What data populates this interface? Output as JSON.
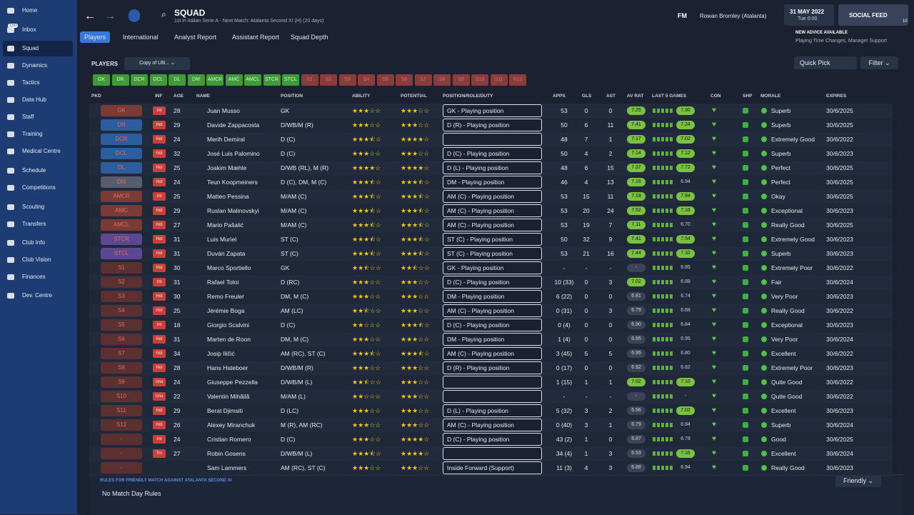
{
  "sidebar": {
    "inbox_badge": "150",
    "items": [
      "Home",
      "Inbox",
      "Squad",
      "Dynamics",
      "Tactics",
      "Data Hub",
      "Staff",
      "Training",
      "Medical Centre",
      "Schedule",
      "Competitions",
      "Scouting",
      "Transfers",
      "Club Info",
      "Club Vision",
      "Finances",
      "Dev. Centre"
    ]
  },
  "header": {
    "title": "SQUAD",
    "subtitle": "1st in Italian Serie A - Next Match: Atalanta Second XI (H) (20 days)",
    "logo": "FM",
    "manager": "Rowan Bromley (Atalanta)",
    "date": "31 MAY 2022",
    "time": "Tue 0:00",
    "social": "SOCIAL FEED",
    "social_badge": "10",
    "advice_title": "NEW ADVICE AVAILABLE",
    "advice_text": "Playing Time Changes, Manager Support"
  },
  "tabs": [
    "Players",
    "International",
    "Analyst Report",
    "Assistant Report",
    "Squad Depth"
  ],
  "toolbar": {
    "section": "PLAYERS",
    "view": "Copy of Ulti...",
    "quick_pick": "Quick Pick",
    "filter": "Filter"
  },
  "chips": [
    "GK",
    "DR",
    "DCR",
    "DCL",
    "DL",
    "DM",
    "AMCR",
    "AMC",
    "AMCL",
    "STCR",
    "STCL",
    "S1",
    "S2",
    "S3",
    "S4",
    "S5",
    "S6",
    "S7",
    "S8",
    "S9",
    "S10",
    "S11",
    "S12"
  ],
  "table": {
    "columns": [
      "PKD",
      "INF",
      "AGE",
      "NAME",
      "POSITION",
      "ABILITY",
      "POTENTIAL",
      "POSITION/ROLE/DUTY",
      "APPS",
      "GLS",
      "AST",
      "AV RAT",
      "LAST 5 GAMES",
      "CON",
      "SHP",
      "MORALE",
      "EXPIRES"
    ],
    "rows": [
      {
        "pkd": "GK",
        "inf": "Int",
        "age": 28,
        "name": "Juan Musso",
        "pos": "GK",
        "ability": 3,
        "potential": 3,
        "role": "GK - Playing position",
        "apps": "53",
        "gls": "0",
        "ast": "0",
        "avr": "7.25",
        "last5": "7.30",
        "morale": "Superb",
        "expires": "30/6/2025"
      },
      {
        "pkd": "DR",
        "inf": "Hol",
        "age": 29,
        "name": "Davide Zappacosta",
        "pos": "D/WB/M (R)",
        "ability": 3,
        "potential": 3,
        "role": "D (R) - Playing position",
        "apps": "50",
        "gls": "6",
        "ast": "11",
        "avr": "7.41",
        "last5": "7.24",
        "morale": "Superb",
        "expires": "30/6/2025"
      },
      {
        "pkd": "DCR",
        "inf": "Hol",
        "age": 24,
        "name": "Merih Demiral",
        "pos": "D (C)",
        "ability": 3.5,
        "potential": 4,
        "apps": "48",
        "gls": "7",
        "ast": "1",
        "avr": "7.17",
        "last5": "7.02",
        "morale": "Extremely Good",
        "expires": "30/6/2022"
      },
      {
        "pkd": "DCL",
        "inf": "Hol",
        "age": 32,
        "name": "José Luis Palomino",
        "pos": "D (C)",
        "ability": 3,
        "potential": 3,
        "role": "D (C) - Playing position",
        "apps": "50",
        "gls": "4",
        "ast": "2",
        "avr": "7.14",
        "last5": "7.12",
        "morale": "Superb",
        "expires": "30/6/2023"
      },
      {
        "pkd": "DL",
        "inf": "Hol",
        "age": 25,
        "name": "Joakim Mæhle",
        "pos": "D/WB (RL), M (R)",
        "ability": 4,
        "potential": 4,
        "role": "D (L) - Playing position",
        "apps": "48",
        "gls": "6",
        "ast": "15",
        "avr": "7.37",
        "last5": "7.72",
        "morale": "Perfect",
        "expires": "30/6/2025"
      },
      {
        "pkd": "DM",
        "inf": "Hol",
        "age": 24,
        "name": "Teun Koopmeiners",
        "pos": "D (C), DM, M (C)",
        "ability": 3.5,
        "potential": 3.5,
        "role": "DM - Playing position",
        "apps": "46",
        "gls": "4",
        "ast": "13",
        "avr": "7.16",
        "last5": "6.94",
        "morale": "Perfect",
        "expires": "30/6/2025"
      },
      {
        "pkd": "AMCR",
        "inf": "Int",
        "age": 25,
        "name": "Matteo Pessina",
        "pos": "M/AM (C)",
        "ability": 3.5,
        "potential": 3.5,
        "role": "AM (C) - Playing position",
        "apps": "53",
        "gls": "15",
        "ast": "11",
        "avr": "7.19",
        "last5": "7.84",
        "morale": "Okay",
        "expires": "30/6/2025"
      },
      {
        "pkd": "AMC",
        "inf": "Hol",
        "age": 29,
        "name": "Ruslan Malinovskyi",
        "pos": "M/AM (C)",
        "ability": 3.5,
        "potential": 3.5,
        "role": "AM (C) - Playing position",
        "apps": "53",
        "gls": "20",
        "ast": "24",
        "avr": "7.52",
        "last5": "7.16",
        "morale": "Exceptional",
        "expires": "30/6/2023"
      },
      {
        "pkd": "AMCL",
        "inf": "Hol",
        "age": 27,
        "name": "Mario Pašalić",
        "pos": "M/AM (C)",
        "ability": 3.5,
        "potential": 3.5,
        "role": "AM (C) - Playing position",
        "apps": "53",
        "gls": "19",
        "ast": "7",
        "avr": "7.11",
        "last5": "6.70",
        "morale": "Really Good",
        "expires": "30/6/2025"
      },
      {
        "pkd": "STCR",
        "inf": "Hol",
        "age": 31,
        "name": "Luis Muriel",
        "pos": "ST (C)",
        "ability": 3.5,
        "potential": 3.5,
        "role": "ST (C) - Playing position",
        "apps": "50",
        "gls": "32",
        "ast": "9",
        "avr": "7.41",
        "last5": "7.54",
        "morale": "Extremely Good",
        "expires": "30/6/2023"
      },
      {
        "pkd": "STCL",
        "inf": "Hol",
        "age": 31,
        "name": "Duván Zapata",
        "pos": "ST (C)",
        "ability": 3.5,
        "potential": 3.5,
        "role": "ST (C) - Playing position",
        "apps": "53",
        "gls": "21",
        "ast": "16",
        "avr": "7.44",
        "last5": "7.32",
        "morale": "Superb",
        "expires": "30/6/2023"
      },
      {
        "pkd": "S1",
        "inf": "Hol",
        "age": 30,
        "name": "Marco Sportiello",
        "pos": "GK",
        "ability": 2.5,
        "potential": 2.5,
        "role": "GK - Playing position",
        "apps": "-",
        "gls": "-",
        "ast": "-",
        "avr": "-",
        "last5": "6.85",
        "morale": "Extremely Poor",
        "expires": "30/6/2022"
      },
      {
        "pkd": "S2",
        "inf": "Int",
        "age": 31,
        "name": "Rafael Toloi",
        "pos": "D (RC)",
        "ability": 3,
        "potential": 3,
        "role": "D (C) - Playing position",
        "apps": "10 (33)",
        "gls": "0",
        "ast": "3",
        "avr": "7.02",
        "last5": "6.88",
        "morale": "Fair",
        "expires": "30/6/2024"
      },
      {
        "pkd": "S3",
        "inf": "Hol",
        "age": 30,
        "name": "Remo Freuler",
        "pos": "DM, M (C)",
        "ability": 3,
        "potential": 3,
        "role": "DM - Playing position",
        "apps": "6 (22)",
        "gls": "0",
        "ast": "0",
        "avr": "6.81",
        "last5": "6.74",
        "morale": "Very Poor",
        "expires": "30/6/2023"
      },
      {
        "pkd": "S4",
        "inf": "Hol",
        "age": 25,
        "name": "Jérémie Boga",
        "pos": "AM (LC)",
        "ability": 2.5,
        "potential": 3,
        "role": "AM (C) - Playing position",
        "apps": "0 (31)",
        "gls": "0",
        "ast": "3",
        "avr": "6.79",
        "last5": "6.68",
        "morale": "Really Good",
        "expires": "30/6/2022"
      },
      {
        "pkd": "S5",
        "inf": "Int",
        "age": 18,
        "name": "Giorgio Scalvini",
        "pos": "D (C)",
        "ability": 2,
        "potential": 3.5,
        "role": "D (C) - Playing position",
        "apps": "0 (4)",
        "gls": "0",
        "ast": "0",
        "avr": "6.90",
        "last5": "6.84",
        "morale": "Exceptional",
        "expires": "30/6/2023"
      },
      {
        "pkd": "S6",
        "inf": "Hol",
        "age": 31,
        "name": "Marten de Roon",
        "pos": "DM, M (C)",
        "ability": 3,
        "potential": 3,
        "role": "DM - Playing position",
        "apps": "1 (4)",
        "gls": "0",
        "ast": "0",
        "avr": "6.95",
        "last5": "6.95",
        "morale": "Very Poor",
        "expires": "30/6/2024"
      },
      {
        "pkd": "S7",
        "inf": "Hol",
        "age": 34,
        "name": "Josip Iličić",
        "pos": "AM (RC), ST (C)",
        "ability": 3.5,
        "potential": 3.5,
        "role": "AM (C) - Playing position",
        "apps": "3 (45)",
        "gls": "5",
        "ast": "5",
        "avr": "6.95",
        "last5": "6.80",
        "morale": "Excellent",
        "expires": "30/6/2022"
      },
      {
        "pkd": "S8",
        "inf": "Hol",
        "age": 28,
        "name": "Hans Hateboer",
        "pos": "D/WB/M (R)",
        "ability": 3,
        "potential": 3,
        "role": "D (R) - Playing position",
        "apps": "0 (17)",
        "gls": "0",
        "ast": "0",
        "avr": "6.92",
        "last5": "6.82",
        "morale": "Extremely Poor",
        "expires": "30/6/2023"
      },
      {
        "pkd": "S9",
        "inf": "Una",
        "age": 24,
        "name": "Giuseppe Pezzella",
        "pos": "D/WB/M (L)",
        "ability": 2.5,
        "potential": 3,
        "apps": "1 (15)",
        "gls": "1",
        "ast": "1",
        "avr": "7.02",
        "last5": "7.10",
        "morale": "Quite Good",
        "expires": "30/6/2022"
      },
      {
        "pkd": "S10",
        "inf": "Una",
        "age": 22,
        "name": "Valentin Mihăilă",
        "pos": "M/AM (L)",
        "ability": 2,
        "potential": 3,
        "apps": "-",
        "gls": "-",
        "ast": "-",
        "avr": "-",
        "last5": "-",
        "morale": "Quite Good",
        "expires": "30/6/2022"
      },
      {
        "pkd": "S11",
        "inf": "Hol",
        "age": 29,
        "name": "Berat Djimsiti",
        "pos": "D (LC)",
        "ability": 3,
        "potential": 3,
        "role": "D (L) - Playing position",
        "apps": "5 (32)",
        "gls": "3",
        "ast": "2",
        "avr": "6.96",
        "last5": "7.02",
        "morale": "Excellent",
        "expires": "30/6/2023"
      },
      {
        "pkd": "S12",
        "inf": "Hol",
        "age": 26,
        "name": "Alexey Miranchuk",
        "pos": "M (R), AM (RC)",
        "ability": 3,
        "potential": 3,
        "role": "AM (C) - Playing position",
        "apps": "0 (40)",
        "gls": "3",
        "ast": "1",
        "avr": "6.79",
        "last5": "6.84",
        "morale": "Superb",
        "expires": "30/6/2024"
      },
      {
        "pkd": "-",
        "inf": "Int",
        "age": 24,
        "name": "Cristian Romero",
        "pos": "D (C)",
        "ability": 3,
        "potential": 4,
        "role": "D (C) - Playing position",
        "apps": "43 (2)",
        "gls": "1",
        "ast": "0",
        "avr": "6.87",
        "last5": "6.78",
        "morale": "Good",
        "expires": "30/6/2025"
      },
      {
        "pkd": "-",
        "inf": "Trn",
        "age": 27,
        "name": "Robin Gosens",
        "pos": "D/WB/M (L)",
        "ability": 3.5,
        "potential": 4,
        "apps": "34 (4)",
        "gls": "1",
        "ast": "3",
        "avr": "6.93",
        "last5": "7.16",
        "morale": "Excellent",
        "expires": "30/6/2024"
      },
      {
        "pkd": "-",
        "name": "Sam Lammers",
        "pos": "AM (RC), ST (C)",
        "ability": 3,
        "potential": 3,
        "role": "Inside Forward (Support)",
        "apps": "11 (3)",
        "gls": "4",
        "ast": "3",
        "avr": "6.88",
        "last5": "6.94",
        "morale": "Really Good",
        "expires": "30/6/2023"
      }
    ]
  },
  "footer": {
    "rules_title": "RULES FOR FRIENDLY MATCH AGAINST ATALANTA SECOND XI",
    "rules_text": "No Match Day Rules",
    "match_type": "Friendly"
  }
}
